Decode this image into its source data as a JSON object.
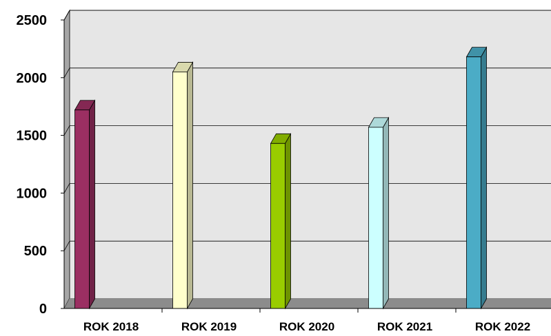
{
  "chart_data": {
    "type": "bar",
    "style": "3d-column",
    "title": "",
    "xlabel": "",
    "ylabel": "",
    "categories": [
      "ROK 2018",
      "ROK 2019",
      "ROK 2020",
      "ROK 2021",
      "ROK 2022"
    ],
    "values": [
      1720,
      2050,
      1430,
      1570,
      2180
    ],
    "ylim": [
      0,
      2500
    ],
    "yticks": [
      0,
      500,
      1000,
      1500,
      2000,
      2500
    ],
    "grid": true,
    "legend": "none",
    "bar_colors": [
      "#9B2F62",
      "#FFFFCC",
      "#99CC00",
      "#CCFFFF",
      "#4BACC6"
    ],
    "background_color": "#E6E6E6",
    "floor_color": "#8C8C8C"
  }
}
